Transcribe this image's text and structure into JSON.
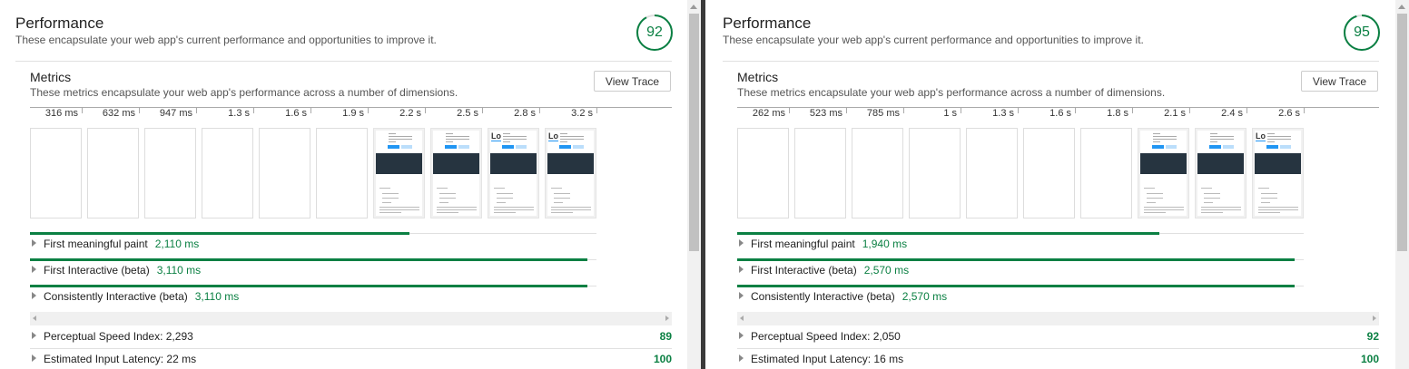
{
  "panes": [
    {
      "title": "Performance",
      "description": "These encapsulate your web app's current performance and opportunities to improve it.",
      "score": "92",
      "score_fraction": 0.92,
      "metrics_title": "Metrics",
      "metrics_description": "These metrics encapsulate your web app's performance across a number of dimensions.",
      "view_trace_label": "View Trace",
      "timeline_ticks": [
        "316 ms",
        "632 ms",
        "947 ms",
        "1.3 s",
        "1.6 s",
        "1.9 s",
        "2.2 s",
        "2.5 s",
        "2.8 s",
        "3.2 s"
      ],
      "frames": [
        "blank",
        "blank",
        "blank",
        "blank",
        "blank",
        "blank",
        "content",
        "content",
        "content-logo",
        "content-logo"
      ],
      "metrics": [
        {
          "label": "First meaningful paint",
          "value": "2,110 ms",
          "bar_fraction": 0.67
        },
        {
          "label": "First Interactive (beta)",
          "value": "3,110 ms",
          "bar_fraction": 0.984
        },
        {
          "label": "Consistently Interactive (beta)",
          "value": "3,110 ms",
          "bar_fraction": 0.984
        }
      ],
      "audits": [
        {
          "label": "Perceptual Speed Index: 2,293",
          "score": "89"
        },
        {
          "label": "Estimated Input Latency: 22 ms",
          "score": "100"
        }
      ]
    },
    {
      "title": "Performance",
      "description": "These encapsulate your web app's current performance and opportunities to improve it.",
      "score": "95",
      "score_fraction": 0.95,
      "metrics_title": "Metrics",
      "metrics_description": "These metrics encapsulate your web app's performance across a number of dimensions.",
      "view_trace_label": "View Trace",
      "timeline_ticks": [
        "262 ms",
        "523 ms",
        "785 ms",
        "1 s",
        "1.3 s",
        "1.6 s",
        "1.8 s",
        "2.1 s",
        "2.4 s",
        "2.6 s"
      ],
      "frames": [
        "blank",
        "blank",
        "blank",
        "blank",
        "blank",
        "blank",
        "blank",
        "content",
        "content",
        "content-logo"
      ],
      "metrics": [
        {
          "label": "First meaningful paint",
          "value": "1,940 ms",
          "bar_fraction": 0.745
        },
        {
          "label": "First Interactive (beta)",
          "value": "2,570 ms",
          "bar_fraction": 0.984
        },
        {
          "label": "Consistently Interactive (beta)",
          "value": "2,570 ms",
          "bar_fraction": 0.984
        }
      ],
      "audits": [
        {
          "label": "Perceptual Speed Index: 2,050",
          "score": "92"
        },
        {
          "label": "Estimated Input Latency: 16 ms",
          "score": "100"
        }
      ]
    }
  ],
  "colors": {
    "pass": "#0b8043",
    "divider": "#3a3a3a"
  }
}
